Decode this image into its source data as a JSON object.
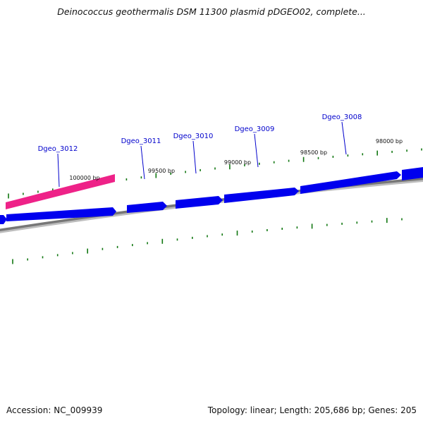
{
  "title": "Deinococcus geothermalis DSM 11300 plasmid pDGEO02, complete...",
  "footer": {
    "accession": "Accession: NC_009939",
    "summary": "Topology: linear; Length: 205,686 bp; Genes: 205"
  },
  "colors": {
    "forward_gene": "#0000ee",
    "reverse_gene": "#ee2288",
    "backbone": "#777777",
    "tick": "#117711",
    "gene_label": "#0000cc"
  },
  "genes": [
    {
      "id": "Dgeo_3012",
      "strand": "reverse",
      "label": "Dgeo_3012"
    },
    {
      "id": "Dgeo_3011",
      "strand": "forward",
      "label": "Dgeo_3011"
    },
    {
      "id": "Dgeo_3010",
      "strand": "forward",
      "label": "Dgeo_3010"
    },
    {
      "id": "Dgeo_3009",
      "strand": "forward",
      "label": "Dgeo_3009"
    },
    {
      "id": "Dgeo_3008",
      "strand": "forward",
      "label": "Dgeo_3008"
    }
  ],
  "position_labels": [
    "100000 bp",
    "99500 bp",
    "99000 bp",
    "98500 bp",
    "98000 bp"
  ]
}
